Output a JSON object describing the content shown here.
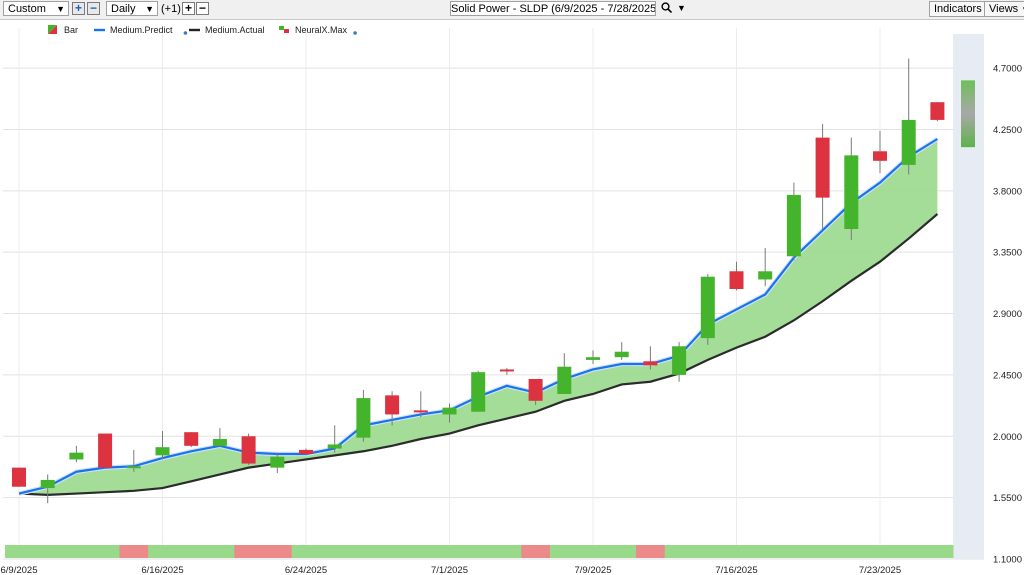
{
  "toolbar": {
    "period_select": "Custom",
    "interval_select": "Daily",
    "offset_label": "(+1)",
    "title": "Solid Power - SLDP (6/9/2025 - 7/28/2025)",
    "indicators_label": "Indicators",
    "views_label": "Views"
  },
  "legend": [
    {
      "label": "Bar",
      "color": "#2e9e2e"
    },
    {
      "label": "Medium.Predict",
      "color": "#1a73e8"
    },
    {
      "label": "Medium.Actual",
      "color": "#222222"
    },
    {
      "label": "NeuralX.Max",
      "color": "#2e9e2e"
    }
  ],
  "colors": {
    "up": "#44b42c",
    "down": "#dd3340",
    "predict": "#1a73e8",
    "actual": "#2b2b2b",
    "band": "#9edb91",
    "strip_green": "#98d98a",
    "strip_red": "#ec8a8a"
  },
  "chart_data": {
    "type": "candlestick",
    "ylim": [
      1.1,
      4.95
    ],
    "yticks": [
      "4.7000",
      "4.2500",
      "3.8000",
      "3.3500",
      "2.9000",
      "2.4500",
      "2.0000",
      "1.5500",
      "1.1000"
    ],
    "ytick_values": [
      4.7,
      4.25,
      3.8,
      3.35,
      2.9,
      2.45,
      2.0,
      1.55,
      1.1
    ],
    "xticks": [
      "6/9/2025",
      "6/16/2025",
      "6/24/2025",
      "7/1/2025",
      "7/9/2025",
      "7/16/2025",
      "7/23/2025"
    ],
    "xtick_index": [
      0,
      5,
      10,
      15,
      20,
      25,
      30
    ],
    "candles": [
      {
        "o": 1.77,
        "h": 1.77,
        "l": 1.63,
        "c": 1.63
      },
      {
        "o": 1.62,
        "h": 1.72,
        "l": 1.51,
        "c": 1.68
      },
      {
        "o": 1.83,
        "h": 1.93,
        "l": 1.81,
        "c": 1.88
      },
      {
        "o": 2.02,
        "h": 2.02,
        "l": 1.77,
        "c": 1.77
      },
      {
        "o": 1.77,
        "h": 1.9,
        "l": 1.74,
        "c": 1.78
      },
      {
        "o": 1.86,
        "h": 2.04,
        "l": 1.83,
        "c": 1.92
      },
      {
        "o": 2.03,
        "h": 2.03,
        "l": 1.92,
        "c": 1.93
      },
      {
        "o": 1.93,
        "h": 2.06,
        "l": 1.92,
        "c": 1.98
      },
      {
        "o": 2.0,
        "h": 2.02,
        "l": 1.79,
        "c": 1.8
      },
      {
        "o": 1.77,
        "h": 1.88,
        "l": 1.73,
        "c": 1.85
      },
      {
        "o": 1.9,
        "h": 1.91,
        "l": 1.86,
        "c": 1.87
      },
      {
        "o": 1.91,
        "h": 2.08,
        "l": 1.88,
        "c": 1.94
      },
      {
        "o": 1.99,
        "h": 2.34,
        "l": 1.96,
        "c": 2.28
      },
      {
        "o": 2.3,
        "h": 2.33,
        "l": 2.08,
        "c": 2.16
      },
      {
        "o": 2.19,
        "h": 2.33,
        "l": 2.14,
        "c": 2.18
      },
      {
        "o": 2.16,
        "h": 2.24,
        "l": 2.1,
        "c": 2.21
      },
      {
        "o": 2.18,
        "h": 2.48,
        "l": 2.18,
        "c": 2.47
      },
      {
        "o": 2.49,
        "h": 2.5,
        "l": 2.45,
        "c": 2.48
      },
      {
        "o": 2.42,
        "h": 2.42,
        "l": 2.23,
        "c": 2.26
      },
      {
        "o": 2.31,
        "h": 2.61,
        "l": 2.31,
        "c": 2.51
      },
      {
        "o": 2.56,
        "h": 2.63,
        "l": 2.53,
        "c": 2.58
      },
      {
        "o": 2.58,
        "h": 2.69,
        "l": 2.56,
        "c": 2.62
      },
      {
        "o": 2.55,
        "h": 2.66,
        "l": 2.49,
        "c": 2.52
      },
      {
        "o": 2.45,
        "h": 2.69,
        "l": 2.4,
        "c": 2.66
      },
      {
        "o": 2.72,
        "h": 3.19,
        "l": 2.67,
        "c": 3.17
      },
      {
        "o": 3.21,
        "h": 3.28,
        "l": 3.07,
        "c": 3.08
      },
      {
        "o": 3.15,
        "h": 3.38,
        "l": 3.1,
        "c": 3.21
      },
      {
        "o": 3.32,
        "h": 3.86,
        "l": 3.29,
        "c": 3.77
      },
      {
        "o": 4.19,
        "h": 4.29,
        "l": 3.52,
        "c": 3.75
      },
      {
        "o": 3.52,
        "h": 4.19,
        "l": 3.44,
        "c": 4.06
      },
      {
        "o": 4.09,
        "h": 4.24,
        "l": 3.93,
        "c": 4.02
      },
      {
        "o": 3.99,
        "h": 4.77,
        "l": 3.92,
        "c": 4.32
      },
      {
        "o": 4.45,
        "h": 4.45,
        "l": 4.31,
        "c": 4.32
      }
    ],
    "predict": [
      1.58,
      1.63,
      1.74,
      1.77,
      1.78,
      1.84,
      1.89,
      1.93,
      1.88,
      1.87,
      1.87,
      1.91,
      2.08,
      2.12,
      2.16,
      2.19,
      2.29,
      2.37,
      2.32,
      2.42,
      2.49,
      2.53,
      2.53,
      2.59,
      2.82,
      2.93,
      3.04,
      3.31,
      3.51,
      3.71,
      3.86,
      4.05,
      4.18
    ],
    "actual": [
      1.58,
      1.57,
      1.58,
      1.59,
      1.6,
      1.62,
      1.67,
      1.72,
      1.77,
      1.8,
      1.83,
      1.86,
      1.89,
      1.93,
      1.98,
      2.02,
      2.08,
      2.13,
      2.18,
      2.26,
      2.31,
      2.38,
      2.4,
      2.46,
      2.56,
      2.65,
      2.73,
      2.85,
      2.99,
      3.14,
      3.28,
      3.45,
      3.63
    ],
    "neuralx_max": {
      "open": 4.12,
      "close": 4.61
    },
    "strip": [
      "g",
      "g",
      "g",
      "g",
      "r",
      "g",
      "g",
      "g",
      "r",
      "r",
      "g",
      "g",
      "g",
      "g",
      "g",
      "g",
      "g",
      "g",
      "r",
      "g",
      "g",
      "g",
      "r",
      "g",
      "g",
      "g",
      "g",
      "g",
      "g",
      "g",
      "g",
      "g",
      "g"
    ]
  }
}
